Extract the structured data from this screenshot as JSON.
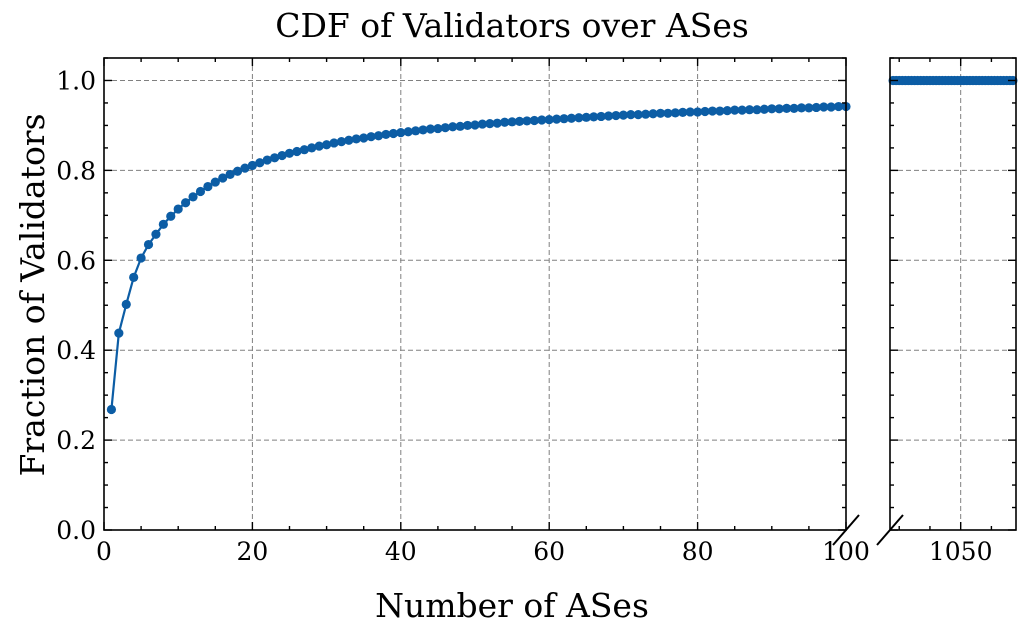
{
  "chart_data": {
    "type": "line",
    "title": "CDF of Validators over ASes",
    "xlabel": "Number of ASes",
    "ylabel": "Fraction of Validators",
    "broken_x_axis": true,
    "panels": [
      {
        "xlim": [
          0,
          100
        ],
        "xticks": [
          0,
          20,
          40,
          60,
          80,
          100
        ],
        "xtick_labels": [
          "0",
          "20",
          "40",
          "60",
          "80",
          "100"
        ]
      },
      {
        "xlim": [
          1027,
          1068
        ],
        "xticks": [
          1050
        ],
        "xtick_labels": [
          "1050"
        ]
      }
    ],
    "ylim": [
      0,
      1.05
    ],
    "yticks": [
      0,
      0.2,
      0.4,
      0.6,
      0.8,
      1.0
    ],
    "ytick_labels": [
      "0.0",
      "0.2",
      "0.4",
      "0.6",
      "0.8",
      "1.0"
    ],
    "grid": true,
    "color": "#0c5da5",
    "series": [
      {
        "x": [
          1,
          2,
          3,
          4,
          5,
          6,
          7,
          8,
          9,
          10,
          11,
          12,
          13,
          14,
          15,
          16,
          17,
          18,
          19,
          20,
          21,
          22,
          23,
          24,
          25,
          26,
          27,
          28,
          29,
          30,
          31,
          32,
          33,
          34,
          35,
          36,
          37,
          38,
          39,
          40,
          41,
          42,
          43,
          44,
          45,
          46,
          47,
          48,
          49,
          50,
          51,
          52,
          53,
          54,
          55,
          56,
          57,
          58,
          59,
          60,
          61,
          62,
          63,
          64,
          65,
          66,
          67,
          68,
          69,
          70,
          71,
          72,
          73,
          74,
          75,
          76,
          77,
          78,
          79,
          80,
          81,
          82,
          83,
          84,
          85,
          86,
          87,
          88,
          89,
          90,
          91,
          92,
          93,
          94,
          95,
          96,
          97,
          98,
          99,
          100
        ],
        "y": [
          0.268,
          0.438,
          0.502,
          0.562,
          0.605,
          0.635,
          0.658,
          0.68,
          0.698,
          0.714,
          0.728,
          0.741,
          0.753,
          0.764,
          0.774,
          0.783,
          0.791,
          0.798,
          0.805,
          0.811,
          0.817,
          0.823,
          0.828,
          0.833,
          0.838,
          0.842,
          0.846,
          0.85,
          0.854,
          0.857,
          0.861,
          0.864,
          0.867,
          0.87,
          0.872,
          0.875,
          0.877,
          0.88,
          0.882,
          0.884,
          0.886,
          0.888,
          0.89,
          0.892,
          0.893,
          0.895,
          0.897,
          0.898,
          0.9,
          0.901,
          0.903,
          0.904,
          0.905,
          0.907,
          0.908,
          0.909,
          0.91,
          0.911,
          0.912,
          0.913,
          0.914,
          0.915,
          0.916,
          0.917,
          0.918,
          0.919,
          0.92,
          0.921,
          0.922,
          0.923,
          0.924,
          0.924,
          0.925,
          0.926,
          0.927,
          0.927,
          0.928,
          0.929,
          0.93,
          0.93,
          0.931,
          0.932,
          0.932,
          0.933,
          0.934,
          0.934,
          0.935,
          0.935,
          0.936,
          0.937,
          0.937,
          0.938,
          0.938,
          0.939,
          0.939,
          0.94,
          0.941,
          0.941,
          0.942,
          0.942
        ]
      },
      {
        "x": [
          1028,
          1029,
          1030,
          1031,
          1032,
          1033,
          1034,
          1035,
          1036,
          1037,
          1038,
          1039,
          1040,
          1041,
          1042,
          1043,
          1044,
          1045,
          1046,
          1047,
          1048,
          1049,
          1050,
          1051,
          1052,
          1053,
          1054,
          1055,
          1056,
          1057,
          1058,
          1059,
          1060,
          1061,
          1062,
          1063,
          1064,
          1065,
          1066,
          1067
        ],
        "y": [
          1,
          1,
          1,
          1,
          1,
          1,
          1,
          1,
          1,
          1,
          1,
          1,
          1,
          1,
          1,
          1,
          1,
          1,
          1,
          1,
          1,
          1,
          1,
          1,
          1,
          1,
          1,
          1,
          1,
          1,
          1,
          1,
          1,
          1,
          1,
          1,
          1,
          1,
          1,
          1
        ]
      }
    ]
  }
}
